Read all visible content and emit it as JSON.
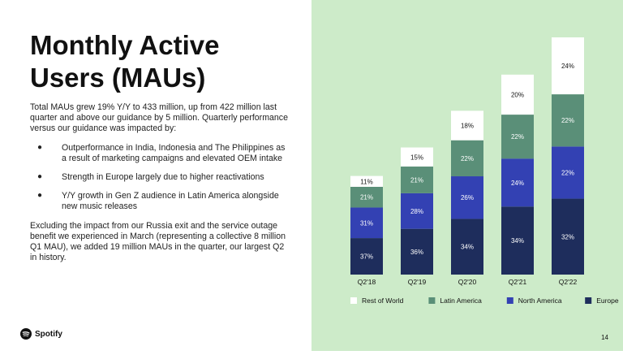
{
  "slide": {
    "title": "Monthly Active Users (MAUs)",
    "intro": "Total MAUs grew 19% Y/Y to 433 million, up from 422 million last quarter and above our guidance by 5 million.  Quarterly performance versus our guidance was impacted by:",
    "bullets": [
      "Outperformance in India, Indonesia and The Philippines as a result of marketing campaigns and elevated OEM intake",
      "Strength in Europe largely due to higher reactivations",
      "Y/Y growth in Gen Z audience in Latin America alongside new music releases"
    ],
    "closing": "Excluding the impact from our Russia exit and the service outage benefit we experienced in March (representing a collective 8 million Q1 MAU), we added 19 million MAUs in the quarter, our largest Q2 in history.",
    "logo_text": "Spotify",
    "page_number": "14",
    "colors": {
      "right_panel_bg": "#cdebc9"
    }
  },
  "chart_data": {
    "type": "bar",
    "stacked": true,
    "categories": [
      "Q2'18",
      "Q2'19",
      "Q2'20",
      "Q2'21",
      "Q2'22"
    ],
    "totals_mau_millions": [
      180,
      232,
      299,
      365,
      433
    ],
    "series": [
      {
        "name": "Europe",
        "color": "#1e2d5c",
        "values": [
          37,
          36,
          34,
          34,
          32
        ]
      },
      {
        "name": "North America",
        "color": "#3341b3",
        "values": [
          31,
          28,
          26,
          24,
          22
        ]
      },
      {
        "name": "Latin America",
        "color": "#5a8f78",
        "values": [
          21,
          21,
          22,
          22,
          22
        ]
      },
      {
        "name": "Rest of World",
        "color": "#ffffff",
        "values": [
          11,
          15,
          18,
          20,
          24
        ]
      }
    ],
    "label_suffix": "%",
    "legend_position": "bottom",
    "grid": false,
    "y_axis_visible": false
  }
}
